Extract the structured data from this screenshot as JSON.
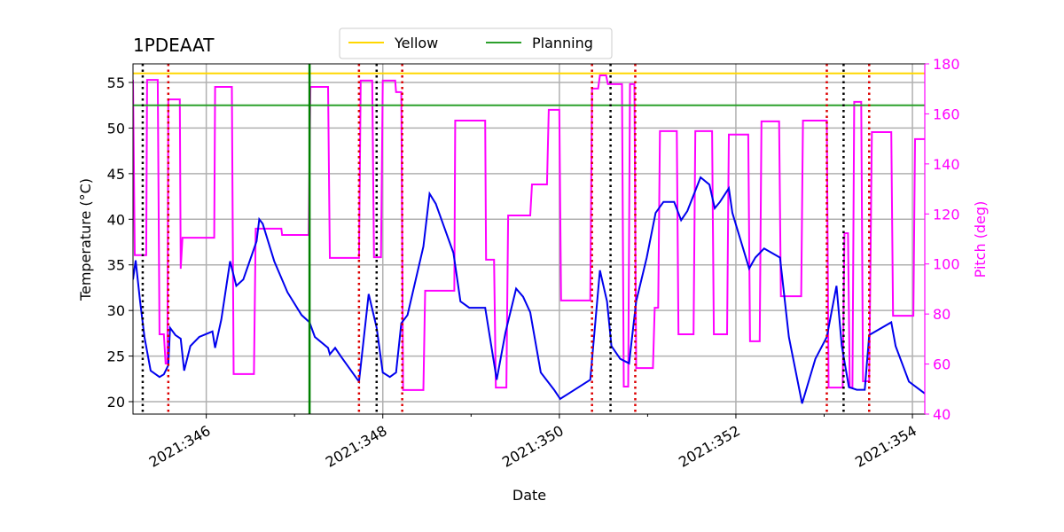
{
  "chart_data": {
    "type": "line",
    "title": "1PDEAAT",
    "xlabel": "Date",
    "ylabel": "Temperature (°C)",
    "y2label": "Pitch (deg)",
    "xlim": [
      345.17,
      354.14
    ],
    "ylim": [
      18.64,
      57.04
    ],
    "y2lim": [
      40,
      180
    ],
    "xticks": [
      {
        "value": 346,
        "label": "2021:346"
      },
      {
        "value": 348,
        "label": "2021:348"
      },
      {
        "value": 350,
        "label": "2021:350"
      },
      {
        "value": 352,
        "label": "2021:352"
      },
      {
        "value": 354,
        "label": "2021:354"
      }
    ],
    "xminorticks": [
      347,
      349,
      351,
      353
    ],
    "yticks": [
      20,
      25,
      30,
      35,
      40,
      45,
      50,
      55
    ],
    "y2ticks": [
      40,
      60,
      80,
      100,
      120,
      140,
      160,
      180
    ],
    "grid": true,
    "y2color": "#ff00ff",
    "legend": "upper center",
    "hlines": [
      {
        "name": "Yellow",
        "value": 56.0,
        "color": "#ffd700"
      },
      {
        "name": "Planning",
        "value": 52.5,
        "color": "#2ca02c"
      }
    ],
    "vlines": [
      {
        "value": 347.17,
        "color": "#008000",
        "style": "solid"
      },
      {
        "value": 345.28,
        "color": "#000000",
        "style": "dotted"
      },
      {
        "value": 347.93,
        "color": "#000000",
        "style": "dotted"
      },
      {
        "value": 350.58,
        "color": "#000000",
        "style": "dotted"
      },
      {
        "value": 353.22,
        "color": "#000000",
        "style": "dotted"
      },
      {
        "value": 345.57,
        "color": "#dd0000",
        "style": "dotted"
      },
      {
        "value": 347.73,
        "color": "#dd0000",
        "style": "dotted"
      },
      {
        "value": 348.22,
        "color": "#dd0000",
        "style": "dotted"
      },
      {
        "value": 350.37,
        "color": "#dd0000",
        "style": "dotted"
      },
      {
        "value": 350.86,
        "color": "#dd0000",
        "style": "dotted"
      },
      {
        "value": 353.03,
        "color": "#dd0000",
        "style": "dotted"
      },
      {
        "value": 353.51,
        "color": "#dd0000",
        "style": "dotted"
      }
    ],
    "series": [
      {
        "color": "#ff00ff",
        "axis": "y2",
        "x": [
          345.17,
          345.19,
          345.32,
          345.33,
          345.45,
          345.47,
          345.52,
          345.54,
          345.56,
          345.57,
          345.7,
          345.71,
          345.73,
          346.09,
          346.1,
          346.29,
          346.31,
          346.54,
          346.56,
          346.85,
          346.86,
          347.16,
          347.18,
          347.38,
          347.4,
          347.73,
          347.75,
          347.88,
          347.9,
          347.98,
          348.0,
          348.14,
          348.15,
          348.21,
          348.23,
          348.46,
          348.48,
          348.81,
          348.82,
          349.16,
          349.17,
          349.26,
          349.28,
          349.4,
          349.42,
          349.67,
          349.69,
          349.86,
          349.88,
          350.0,
          350.02,
          350.35,
          350.37,
          350.44,
          350.46,
          350.53,
          350.55,
          350.71,
          350.73,
          350.78,
          350.8,
          350.85,
          350.87,
          351.06,
          351.08,
          351.12,
          351.14,
          351.33,
          351.35,
          351.52,
          351.54,
          351.73,
          351.75,
          351.9,
          351.92,
          352.14,
          352.16,
          352.27,
          352.29,
          352.49,
          352.51,
          352.74,
          352.76,
          353.03,
          353.05,
          353.21,
          353.23,
          353.27,
          353.29,
          353.32,
          353.34,
          353.42,
          353.44,
          353.51,
          353.54,
          353.76,
          353.78,
          354.01,
          354.03,
          354.14
        ],
        "values": [
          173.6,
          103.5,
          103.5,
          173.6,
          173.6,
          71.9,
          71.9,
          60.2,
          60.2,
          165.8,
          165.8,
          98.1,
          110.5,
          110.5,
          170.8,
          170.8,
          56,
          56,
          114.1,
          114.1,
          111.6,
          111.6,
          170.8,
          170.8,
          102.4,
          102.4,
          173.3,
          173.3,
          102.7,
          102.7,
          173.3,
          173.3,
          168.7,
          168.7,
          49.6,
          49.6,
          89.3,
          89.3,
          157.3,
          157.3,
          101.7,
          101.7,
          50.6,
          50.6,
          119.4,
          119.4,
          131.8,
          131.8,
          161.6,
          161.6,
          85.4,
          85.4,
          170.1,
          170.1,
          175.4,
          175.4,
          171.9,
          171.9,
          51,
          51,
          171.9,
          171.9,
          58.4,
          58.4,
          82.5,
          82.5,
          153.1,
          153.1,
          71.9,
          71.9,
          153.1,
          153.1,
          71.9,
          71.9,
          151.7,
          151.7,
          69.1,
          69.1,
          157,
          157,
          87.1,
          87.1,
          157.3,
          157.3,
          50.6,
          50.6,
          112.3,
          112.3,
          50.6,
          50.6,
          164.8,
          164.8,
          53.1,
          53.1,
          152.7,
          152.7,
          79.3,
          79.3,
          149.9,
          149.9
        ]
      },
      {
        "color": "#0000ee",
        "x": [
          345.17,
          345.2,
          345.25,
          345.3,
          345.37,
          345.47,
          345.52,
          345.57,
          345.59,
          345.65,
          345.71,
          345.75,
          345.82,
          345.92,
          346.07,
          346.1,
          346.17,
          346.27,
          346.34,
          346.42,
          346.57,
          346.6,
          346.64,
          346.77,
          346.92,
          347.08,
          347.17,
          347.23,
          347.38,
          347.4,
          347.46,
          347.53,
          347.73,
          347.84,
          347.93,
          348.0,
          348.08,
          348.15,
          348.21,
          348.28,
          348.46,
          348.53,
          348.6,
          348.8,
          348.88,
          348.98,
          349.16,
          349.29,
          349.39,
          349.51,
          349.59,
          349.67,
          349.79,
          349.94,
          350.01,
          350.09,
          350.35,
          350.46,
          350.54,
          350.59,
          350.69,
          350.79,
          350.87,
          350.99,
          351.09,
          351.18,
          351.3,
          351.38,
          351.45,
          351.6,
          351.7,
          351.76,
          351.82,
          351.92,
          351.96,
          352.15,
          352.22,
          352.32,
          352.5,
          352.6,
          352.75,
          352.9,
          353.03,
          353.14,
          353.2,
          353.28,
          353.37,
          353.46,
          353.51,
          353.76,
          353.81,
          353.96,
          354.14
        ],
        "values": [
          33.4,
          35.5,
          31,
          27.1,
          23.4,
          22.7,
          23.0,
          24,
          28.1,
          27.3,
          26.9,
          23.4,
          26.1,
          27.1,
          27.7,
          25.9,
          29,
          35.4,
          32.7,
          33.4,
          37.6,
          40,
          39.5,
          35.4,
          32,
          29.5,
          28.7,
          27.1,
          25.9,
          25.2,
          25.9,
          24.9,
          22.2,
          31.8,
          28.1,
          23.2,
          22.7,
          23.2,
          28.6,
          29.5,
          37,
          42.8,
          41.7,
          36.3,
          31,
          30.3,
          30.3,
          22.4,
          27.6,
          32.4,
          31.5,
          29.8,
          23.2,
          21.3,
          20.3,
          20.8,
          22.4,
          34.4,
          31,
          26.1,
          24.7,
          24.2,
          31,
          35.8,
          40.7,
          41.9,
          41.9,
          39.9,
          40.9,
          44.6,
          43.8,
          41.2,
          41.9,
          43.4,
          40.7,
          34.6,
          35.8,
          36.8,
          35.8,
          27.1,
          19.8,
          24.7,
          27.1,
          32.7,
          26.1,
          21.6,
          21.3,
          21.3,
          27.3,
          28.7,
          26.1,
          22.2,
          20.9
        ]
      }
    ]
  }
}
